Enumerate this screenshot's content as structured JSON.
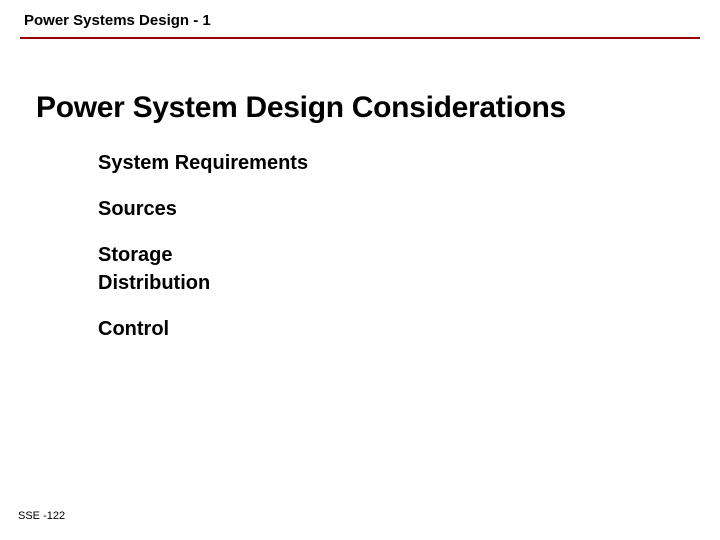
{
  "header": {
    "text": "Power Systems Design - 1"
  },
  "divider": {
    "color": "#990000",
    "thickness": 2
  },
  "title": {
    "text": "Power System Design Considerations",
    "fontsize": 30,
    "color": "#000000",
    "weight": "bold"
  },
  "bullets": {
    "items": [
      "System Requirements",
      "Sources",
      "Storage",
      "Distribution",
      "Control"
    ],
    "fontsize": 20,
    "color": "#000000",
    "weight": "bold"
  },
  "footer": {
    "text": "SSE -122",
    "fontsize": 11,
    "color": "#000000"
  },
  "background_color": "#ffffff"
}
